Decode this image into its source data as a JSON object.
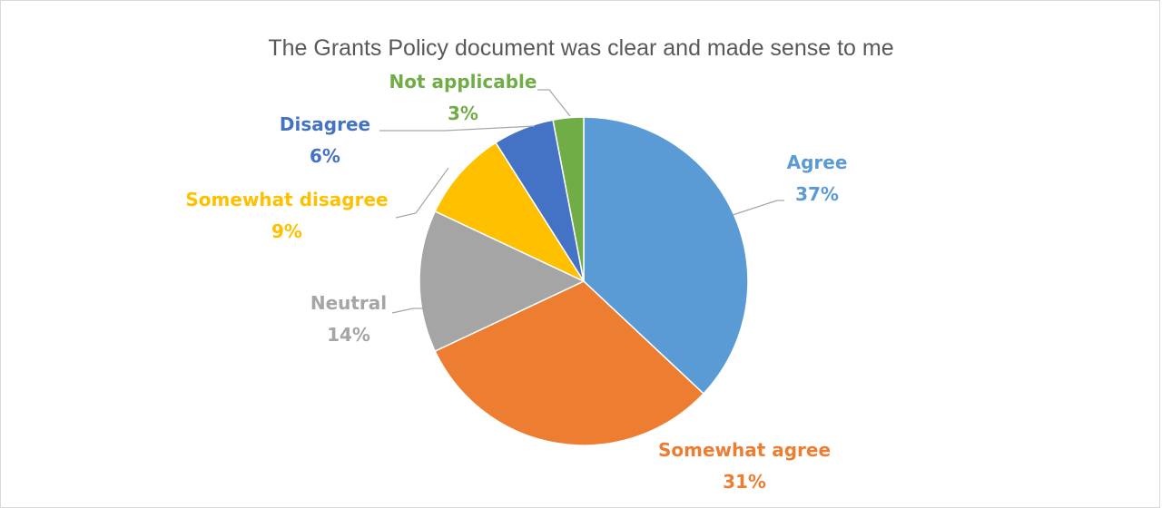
{
  "chart_data": {
    "type": "pie",
    "title": "The Grants Policy document was clear and made sense to me",
    "slices": [
      {
        "label": "Agree",
        "value": 37,
        "pct_label": "37%",
        "color": "#5b9bd5"
      },
      {
        "label": "Somewhat agree",
        "value": 31,
        "pct_label": "31%",
        "color": "#ed7d31"
      },
      {
        "label": "Neutral",
        "value": 14,
        "pct_label": "14%",
        "color": "#a5a5a5"
      },
      {
        "label": "Somewhat disagree",
        "value": 9,
        "pct_label": "9%",
        "color": "#ffc000"
      },
      {
        "label": "Disagree",
        "value": 6,
        "pct_label": "6%",
        "color": "#4472c4"
      },
      {
        "label": "Not applicable",
        "value": 3,
        "pct_label": "3%",
        "color": "#70ad47"
      }
    ],
    "start_angle": "12 o'clock",
    "direction": "clockwise",
    "legend": "none",
    "leader_line_color": "#a6a6a6"
  }
}
